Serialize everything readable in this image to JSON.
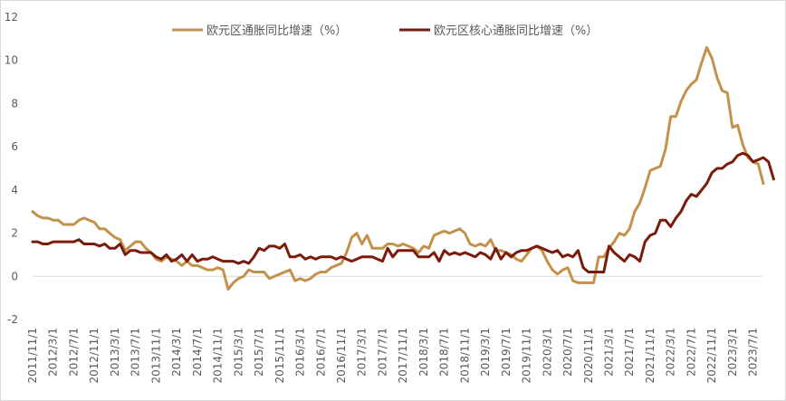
{
  "chart_data": {
    "type": "line",
    "title": "",
    "xlabel": "",
    "ylabel": "",
    "ylim": [
      -2,
      12
    ],
    "yticks": [
      "-2",
      "0",
      "2",
      "4",
      "6",
      "8",
      "10",
      "12"
    ],
    "grid": false,
    "legend_position": "top",
    "start_month": "2011/11",
    "xtick_labels": [
      "2011/11/1",
      "2012/3/1",
      "2012/7/1",
      "2012/11/1",
      "2013/3/1",
      "2013/7/1",
      "2013/11/1",
      "2014/3/1",
      "2014/7/1",
      "2014/11/1",
      "2015/3/1",
      "2015/7/1",
      "2015/11/1",
      "2016/3/1",
      "2016/7/1",
      "2016/11/1",
      "2017/3/1",
      "2017/7/1",
      "2017/11/1",
      "2018/3/1",
      "2018/7/1",
      "2018/11/1",
      "2019/3/1",
      "2019/7/1",
      "2019/11/1",
      "2020/3/1",
      "2020/7/1",
      "2020/11/1",
      "2021/3/1",
      "2021/7/1",
      "2021/11/1",
      "2022/3/1",
      "2022/7/1",
      "2022/11/1",
      "2023/3/1",
      "2023/7/1"
    ],
    "series": [
      {
        "name": "欧元区通胀同比增速（%）",
        "color": "#c4914b",
        "values": [
          3.0,
          2.8,
          2.7,
          2.7,
          2.6,
          2.6,
          2.4,
          2.4,
          2.4,
          2.6,
          2.7,
          2.6,
          2.5,
          2.2,
          2.2,
          2.0,
          1.8,
          1.7,
          1.2,
          1.4,
          1.6,
          1.6,
          1.3,
          1.1,
          0.8,
          0.7,
          0.9,
          0.8,
          0.7,
          0.5,
          0.7,
          0.5,
          0.5,
          0.4,
          0.3,
          0.3,
          0.4,
          0.3,
          -0.6,
          -0.3,
          -0.1,
          0.0,
          0.3,
          0.2,
          0.2,
          0.2,
          -0.1,
          0.0,
          0.1,
          0.2,
          0.3,
          -0.2,
          -0.1,
          -0.2,
          -0.1,
          0.1,
          0.2,
          0.2,
          0.4,
          0.5,
          0.6,
          1.1,
          1.8,
          2.0,
          1.5,
          1.9,
          1.3,
          1.3,
          1.3,
          1.5,
          1.5,
          1.4,
          1.5,
          1.4,
          1.3,
          1.1,
          1.4,
          1.3,
          1.9,
          2.0,
          2.1,
          2.0,
          2.1,
          2.2,
          2.0,
          1.5,
          1.4,
          1.5,
          1.4,
          1.7,
          1.2,
          1.2,
          1.1,
          1.0,
          0.8,
          0.7,
          1.0,
          1.3,
          1.4,
          1.2,
          0.7,
          0.3,
          0.1,
          0.3,
          0.4,
          -0.2,
          -0.3,
          -0.3,
          -0.3,
          -0.3,
          0.9,
          0.9,
          1.3,
          1.6,
          2.0,
          1.9,
          2.2,
          3.0,
          3.4,
          4.1,
          4.9,
          5.0,
          5.1,
          5.9,
          7.4,
          7.4,
          8.1,
          8.6,
          8.9,
          9.1,
          9.9,
          10.6,
          10.1,
          9.2,
          8.6,
          8.5,
          6.9,
          7.0,
          6.1,
          5.5,
          5.3,
          5.2,
          4.3
        ]
      },
      {
        "name": "欧元区核心通胀同比增速（%）",
        "color": "#7a1b0c",
        "values": [
          1.6,
          1.6,
          1.5,
          1.5,
          1.6,
          1.6,
          1.6,
          1.6,
          1.6,
          1.7,
          1.5,
          1.5,
          1.5,
          1.4,
          1.5,
          1.3,
          1.3,
          1.5,
          1.0,
          1.2,
          1.2,
          1.1,
          1.1,
          1.1,
          0.9,
          0.8,
          1.0,
          0.7,
          0.8,
          1.0,
          0.7,
          1.0,
          0.7,
          0.8,
          0.8,
          0.9,
          0.8,
          0.7,
          0.7,
          0.7,
          0.6,
          0.7,
          0.6,
          0.9,
          1.3,
          1.2,
          1.4,
          1.4,
          1.3,
          1.5,
          0.9,
          0.9,
          1.0,
          0.8,
          0.9,
          0.8,
          0.9,
          0.9,
          0.9,
          0.8,
          0.9,
          0.8,
          0.7,
          0.8,
          0.9,
          0.9,
          0.9,
          0.8,
          0.7,
          1.3,
          0.9,
          1.2,
          1.2,
          1.2,
          1.2,
          0.9,
          0.9,
          0.9,
          1.1,
          0.7,
          1.2,
          1.0,
          1.1,
          1.0,
          1.1,
          1.0,
          0.9,
          1.1,
          1.0,
          0.8,
          1.3,
          0.8,
          1.1,
          0.9,
          1.1,
          1.2,
          1.2,
          1.3,
          1.4,
          1.3,
          1.2,
          1.1,
          1.2,
          0.9,
          1.0,
          0.9,
          1.2,
          0.4,
          0.2,
          0.2,
          0.2,
          0.2,
          1.4,
          1.1,
          0.9,
          0.7,
          1.0,
          0.9,
          0.7,
          1.6,
          1.9,
          2.0,
          2.6,
          2.6,
          2.3,
          2.7,
          3.0,
          3.5,
          3.8,
          3.7,
          4.0,
          4.3,
          4.8,
          5.0,
          5.0,
          5.2,
          5.3,
          5.6,
          5.7,
          5.6,
          5.3,
          5.4,
          5.5,
          5.3,
          4.5
        ]
      }
    ]
  }
}
